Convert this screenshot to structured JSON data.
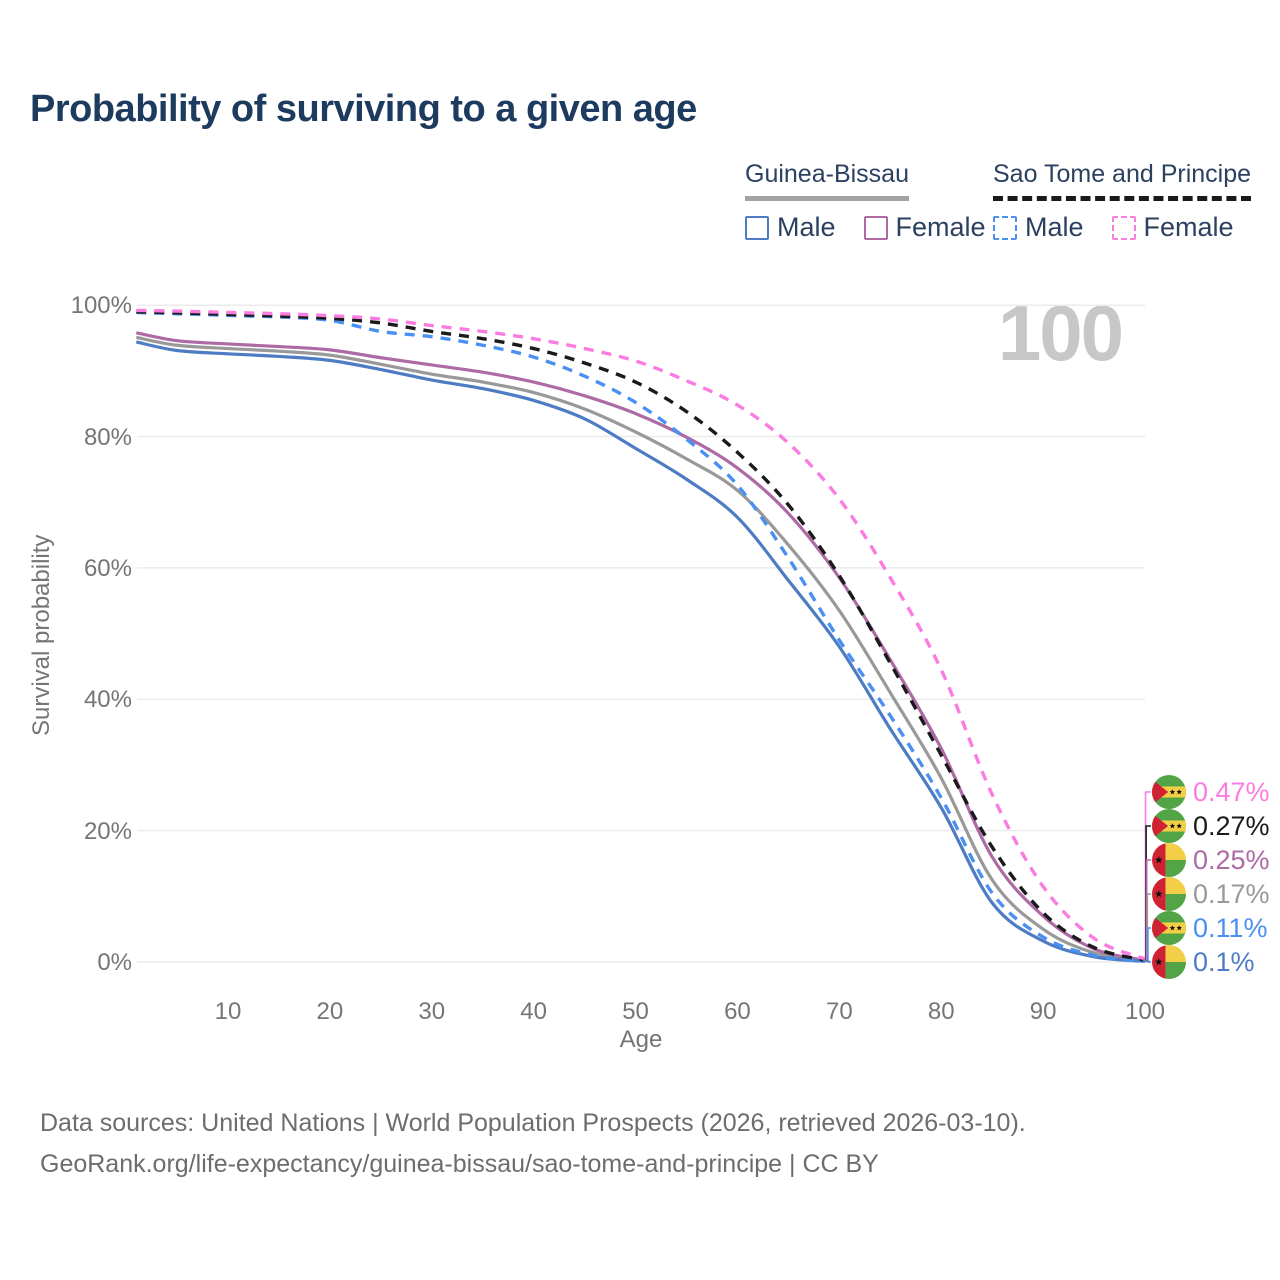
{
  "title": "Probability of surviving to a given age",
  "watermark": "100",
  "legend": {
    "groups": [
      {
        "name": "Guinea-Bissau",
        "line_style": "solid",
        "underline_color": "#a3a3a3",
        "items": [
          {
            "label": "Male",
            "color": "#4d7cc4"
          },
          {
            "label": "Female",
            "color": "#ad6aa5"
          }
        ]
      },
      {
        "name": "Sao Tome and Principe",
        "line_style": "dashed",
        "underline_color": "#1a1a1a",
        "items": [
          {
            "label": "Male",
            "color": "#4a90f2"
          },
          {
            "label": "Female",
            "color": "#fb7ce1"
          }
        ]
      }
    ]
  },
  "chart_data": {
    "type": "line",
    "title": "Probability of surviving to a given age",
    "xlabel": "Age",
    "ylabel": "Survival probability",
    "xlim": [
      1,
      100
    ],
    "ylim": [
      0,
      100
    ],
    "grid": "horizontal",
    "x_ticks": [
      10,
      20,
      30,
      40,
      50,
      60,
      70,
      80,
      90,
      100
    ],
    "y_ticks": [
      {
        "value": 0,
        "label": "0%"
      },
      {
        "value": 20,
        "label": "20%"
      },
      {
        "value": 40,
        "label": "40%"
      },
      {
        "value": 60,
        "label": "60%"
      },
      {
        "value": 80,
        "label": "80%"
      },
      {
        "value": 100,
        "label": "100%"
      }
    ],
    "x": [
      1,
      5,
      10,
      15,
      20,
      25,
      30,
      35,
      40,
      45,
      50,
      55,
      60,
      65,
      70,
      75,
      80,
      85,
      90,
      95,
      100
    ],
    "series": [
      {
        "name": "Guinea-Bissau Both sexes",
        "country": "Guinea-Bissau",
        "sex": "Both",
        "color": "#999999",
        "dashed": false,
        "end_label": "0.17%",
        "values": [
          95.1,
          93.9,
          93.4,
          93.0,
          92.4,
          91.0,
          89.5,
          88.3,
          86.7,
          84.2,
          80.7,
          76.6,
          71.8,
          63.5,
          53.5,
          41.0,
          28.0,
          12.5,
          5.0,
          1.4,
          0.17
        ]
      },
      {
        "name": "Guinea-Bissau Female",
        "country": "Guinea-Bissau",
        "sex": "Female",
        "color": "#ad6aa5",
        "dashed": false,
        "end_label": "0.25%",
        "values": [
          95.8,
          94.6,
          94.1,
          93.7,
          93.2,
          92.0,
          90.9,
          89.8,
          88.3,
          86.2,
          83.5,
          79.9,
          75.2,
          68.3,
          58.5,
          46.0,
          32.5,
          16.0,
          7.0,
          2.0,
          0.25
        ]
      },
      {
        "name": "Guinea-Bissau Male",
        "country": "Guinea-Bissau",
        "sex": "Male",
        "color": "#4d7cc4",
        "dashed": false,
        "end_label": "0.1%",
        "values": [
          94.4,
          93.1,
          92.6,
          92.2,
          91.6,
          90.2,
          88.6,
          87.3,
          85.5,
          82.7,
          78.2,
          73.5,
          67.7,
          58.1,
          48.0,
          35.5,
          23.5,
          9.0,
          3.2,
          0.8,
          0.1
        ]
      },
      {
        "name": "Sao Tome and Principe Male",
        "country": "Sao Tome and Principe",
        "sex": "Male",
        "color": "#4a90f2",
        "dashed": true,
        "end_label": "0.11%",
        "values": [
          98.9,
          98.7,
          98.45,
          98.2,
          97.7,
          96.0,
          95.2,
          93.9,
          92.1,
          89.2,
          85.2,
          79.6,
          72.6,
          61.5,
          49.0,
          37.5,
          25.0,
          10.5,
          3.8,
          1.0,
          0.11
        ]
      },
      {
        "name": "Sao Tome and Principe Both sexes",
        "country": "Sao Tome and Principe",
        "sex": "Both",
        "color": "#1a1a1a",
        "dashed": true,
        "end_label": "0.27%",
        "values": [
          99.0,
          98.85,
          98.6,
          98.35,
          98.0,
          97.3,
          96.0,
          94.9,
          93.4,
          91.2,
          88.3,
          83.8,
          77.6,
          69.6,
          58.8,
          45.5,
          31.5,
          17.5,
          7.5,
          2.2,
          0.27
        ]
      },
      {
        "name": "Sao Tome and Principe Female",
        "country": "Sao Tome and Principe",
        "sex": "Female",
        "color": "#fb7ce1",
        "dashed": true,
        "end_label": "0.47%",
        "values": [
          99.2,
          99.1,
          98.9,
          98.7,
          98.4,
          97.9,
          96.9,
          96.0,
          94.9,
          93.4,
          91.5,
          88.5,
          84.8,
          79.0,
          70.5,
          58.5,
          44.5,
          25.5,
          11.5,
          3.6,
          0.47
        ]
      }
    ],
    "end_labels": [
      {
        "value": "0.47%",
        "flag": "sao-tome-and-principe",
        "color": "#fb7ce1"
      },
      {
        "value": "0.27%",
        "flag": "sao-tome-and-principe",
        "color": "#1a1a1a"
      },
      {
        "value": "0.25%",
        "flag": "guinea-bissau",
        "color": "#ad6aa5"
      },
      {
        "value": "0.17%",
        "flag": "guinea-bissau",
        "color": "#999999"
      },
      {
        "value": "0.11%",
        "flag": "sao-tome-and-principe",
        "color": "#4a90f2"
      },
      {
        "value": "0.1%",
        "flag": "guinea-bissau",
        "color": "#4d7cc4"
      }
    ],
    "flag_colors": {
      "red": "#cf2233",
      "yellow": "#f3cf47",
      "green": "#52a447",
      "star": "#111111"
    }
  },
  "footer": {
    "line1": "Data sources: United Nations | World Population Prospects (2026, retrieved 2026-03-10).",
    "line2": "GeoRank.org/life-expectancy/guinea-bissau/sao-tome-and-principe | CC BY"
  }
}
